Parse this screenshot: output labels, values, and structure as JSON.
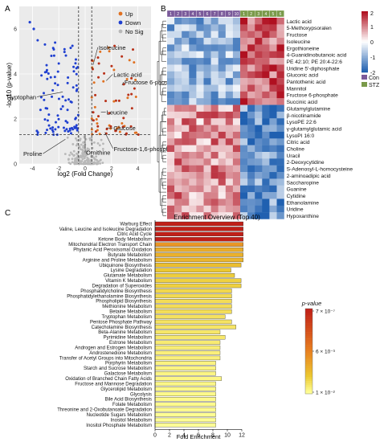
{
  "panels": {
    "a": "A",
    "b": "B",
    "c": "C"
  },
  "chart_data": [
    {
      "type": "scatter",
      "panel": "A",
      "xlabel": "log2 (Fold Change)",
      "ylabel": "-log10 (p-value)",
      "xlim": [
        -5,
        5
      ],
      "ylim": [
        0,
        7
      ],
      "xticks": [
        -4,
        -2,
        0,
        2,
        4
      ],
      "yticks": [
        0,
        2,
        4,
        6
      ],
      "legend": {
        "placement": "top-right",
        "entries": [
          "Up",
          "Down",
          "No Sig"
        ]
      },
      "colors": {
        "up": "#e07020",
        "down": "#1f3fd0",
        "nosig": "#b8b8b8",
        "sig_up": "#b83018"
      },
      "thresholds": {
        "p_line": 1.3,
        "fc_lines": [
          -0.5,
          0.5
        ]
      },
      "labels": [
        {
          "text": "Isoleucine",
          "x": 0.6,
          "y": 4.4
        },
        {
          "text": "Lactic acid",
          "x": 1.6,
          "y": 3.7
        },
        {
          "text": "Tryptophan",
          "x": -1.7,
          "y": 3.2
        },
        {
          "text": "Fructose 6-phosphate",
          "x": 2.8,
          "y": 3.5
        },
        {
          "text": "Leucine",
          "x": 1.2,
          "y": 2.3
        },
        {
          "text": "Glucose",
          "x": 1.6,
          "y": 1.6
        },
        {
          "text": "Proline",
          "x": -1.5,
          "y": 1.1
        },
        {
          "text": "Ornithine",
          "x": 0.0,
          "y": 1.3
        },
        {
          "text": "Fructose-1,6-phosphate",
          "x": 1.5,
          "y": 1.4
        }
      ]
    },
    {
      "type": "heatmap",
      "panel": "B",
      "legend": {
        "entries": [
          "Con",
          "STZ"
        ],
        "colors": [
          "#7a5a9a",
          "#7a9a4a"
        ]
      },
      "group_columns": {
        "con": [
          "1",
          "2",
          "3",
          "4",
          "5",
          "6",
          "7",
          "8",
          "9",
          "10"
        ],
        "stz": [
          "1",
          "2",
          "3",
          "4",
          "5",
          "6"
        ]
      },
      "colorbar": {
        "ticks": [
          "2",
          "1",
          "0",
          "-1",
          "-2"
        ],
        "low": "#2060b0",
        "mid": "#ffffff",
        "high": "#b01020"
      },
      "rows_up": [
        "Lactic acid",
        "5-Methoxypsoralen",
        "Fructose",
        "Isoleucine",
        "Ergothioneine",
        "4-Guanidinobutanoic acid",
        "PE 42:10; PE 20:4-22:6",
        "Uridine 5'-diphosphate",
        "Gluconic acid",
        "Pantothenic acid",
        "Mannitol",
        "Fructose 6-phosphate",
        "Succinic acid"
      ],
      "rows_down": [
        "Glutamylglutamine",
        "β-nicotinamide",
        "LysoPE 22:6",
        "γ-glutamylglutamic acid",
        "LysoPI 16:0",
        "Citric acid",
        "Choline",
        "Uracil",
        "2-Deoxycytidine",
        "S-Adenosyl-L-homocysteine",
        "2-aminoadipic acid",
        "Saccharopine",
        "Guanine",
        "Cytidine",
        "Ethanolamine",
        "Uridine",
        "Hypoxanthine"
      ]
    },
    {
      "type": "bar",
      "panel": "C",
      "title": "Enrichment Overview (Top 40)",
      "xlabel": "Fold Enrichment",
      "xlim": [
        0,
        12
      ],
      "xticks": [
        0,
        2,
        4,
        6,
        8,
        10,
        12
      ],
      "colorbar": {
        "title": "p-value",
        "ticks": [
          "7 × 10⁻⁷",
          "6 × 10⁻³",
          "1 × 10⁻²"
        ],
        "colors": [
          "#c02018",
          "#e8a020",
          "#ffffc0"
        ]
      },
      "categories": [
        "Warburg Effect",
        "Valine, Leucine and Isoleucine Degradation",
        "Citric Acid Cycle",
        "Ketone Body Metabolism",
        "Mitochondrial Electron Transport Chain",
        "Phytanic Acid Peroxisomal Oxidation",
        "Butyrate Metabolism",
        "Arginine and Proline Metabolism",
        "Ubiquinone Biosynthesis",
        "Lysine Degradation",
        "Glutamate Metabolism",
        "Vitamin K Metabolism",
        "Degradation of Superoxides",
        "Phosphatidylcholine Biosynthesis",
        "Phosphatidylethanolamine Biosynthesis",
        "Phospholipid Biosynthesis",
        "Methionine Metabolism",
        "Betaine Metabolism",
        "Tryptophan Metabolism",
        "Pentose Phosphate Pathway",
        "Catecholamine Biosynthesis",
        "Beta-Alanine Metabolism",
        "Pyrimidine Metabolism",
        "Estrone Metabolism",
        "Androgen and Estrogen Metabolism",
        "Androstenedione Metabolism",
        "Transfer of Acetyl Groups into Mitochondria",
        "Porphyrin Metabolism",
        "Starch and Sucrose Metabolism",
        "Galactose Metabolism",
        "Oxidation of Branched Chain Fatty Acids",
        "Fructose and Mannose Degradation",
        "Glycerolipid Metabolism",
        "Glycolysis",
        "Bile Acid Biosynthesis",
        "Folate Metabolism",
        "Threonine and 2-Oxobutanoate Degradation",
        "Nucleotide Sugars Metabolism",
        "Inositol Metabolism",
        "Inositol Phosphate Metabolism"
      ],
      "values": [
        12.2,
        12.2,
        12.2,
        12.2,
        12.2,
        12.2,
        12.2,
        12.2,
        11.9,
        10.5,
        11.0,
        11.9,
        11.9,
        10.6,
        10.6,
        10.6,
        10.6,
        10.6,
        9.7,
        10.6,
        11.2,
        9.0,
        9.7,
        9.0,
        9.0,
        9.0,
        9.0,
        8.4,
        8.4,
        8.4,
        9.2,
        8.4,
        8.4,
        8.4,
        8.4,
        8.4,
        8.4,
        8.4,
        8.4,
        8.4
      ],
      "pvalues": [
        7e-07,
        7e-07,
        7e-07,
        7e-07,
        0.0002,
        0.0005,
        0.0006,
        0.0007,
        0.001,
        0.0015,
        0.0018,
        0.002,
        0.002,
        0.0025,
        0.0028,
        0.003,
        0.003,
        0.0032,
        0.0035,
        0.0038,
        0.004,
        0.0042,
        0.0045,
        0.005,
        0.0055,
        0.0058,
        0.006,
        0.0065,
        0.0068,
        0.007,
        0.0072,
        0.0075,
        0.0078,
        0.008,
        0.0082,
        0.0085,
        0.0088,
        0.0092,
        0.0096,
        0.01
      ]
    }
  ]
}
